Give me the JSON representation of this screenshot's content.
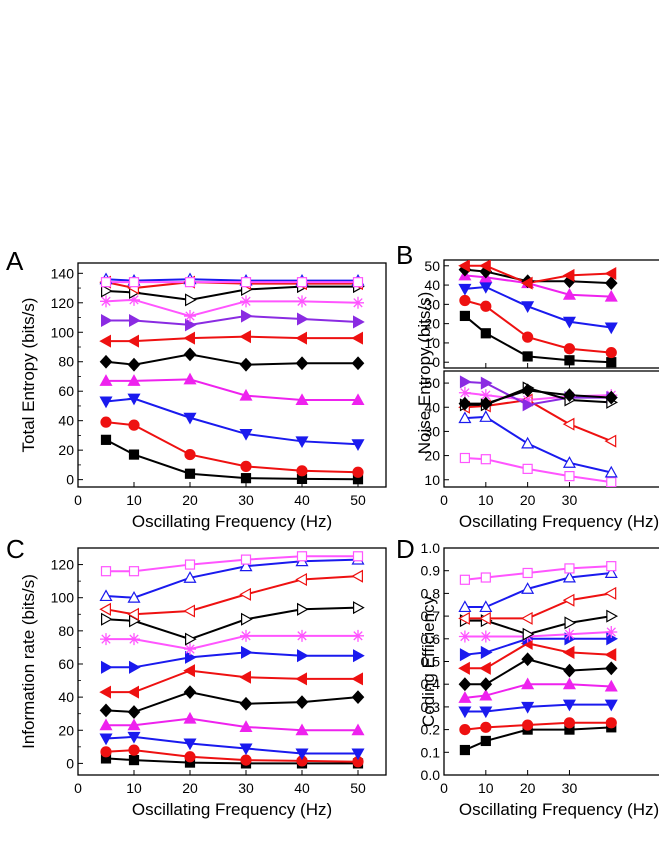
{
  "colors": {
    "black": "#000000",
    "red": "#ee1111",
    "blue": "#1a1aee",
    "magenta": "#ee22ee",
    "purple": "#8a2be2",
    "pink": "#ff55ff"
  },
  "chart_data": [
    {
      "type": "line",
      "panel": "A",
      "xlabel": "Oscillating Frequency (Hz)",
      "ylabel": "Total Entropy (bits/s)",
      "xlim": [
        0,
        55
      ],
      "ylim": [
        -5,
        147
      ],
      "xticks": [
        0,
        10,
        20,
        30,
        40,
        50
      ],
      "yticks": [
        0,
        20,
        40,
        60,
        80,
        100,
        120,
        140
      ],
      "x": [
        5,
        10,
        20,
        30,
        40,
        50
      ],
      "series": [
        {
          "marker": "square",
          "color": "black",
          "filled": true,
          "values": [
            27,
            17,
            4,
            1,
            0.5,
            0.3
          ]
        },
        {
          "marker": "circle",
          "color": "red",
          "filled": true,
          "values": [
            39,
            37,
            17,
            9,
            6,
            5
          ]
        },
        {
          "marker": "tri-down",
          "color": "blue",
          "filled": true,
          "values": [
            53,
            55,
            42,
            31,
            26,
            24
          ]
        },
        {
          "marker": "tri-up",
          "color": "magenta",
          "filled": true,
          "values": [
            67,
            67,
            68,
            57,
            54,
            54
          ]
        },
        {
          "marker": "diamond",
          "color": "black",
          "filled": true,
          "values": [
            80,
            78,
            85,
            78,
            79,
            79
          ]
        },
        {
          "marker": "tri-left",
          "color": "red",
          "filled": true,
          "values": [
            94,
            94,
            96,
            97,
            96,
            96
          ]
        },
        {
          "marker": "tri-right",
          "color": "purple",
          "filled": true,
          "values": [
            108,
            108,
            105,
            111,
            109,
            107
          ]
        },
        {
          "marker": "star",
          "color": "pink",
          "filled": false,
          "values": [
            121,
            122,
            111,
            121,
            121,
            120
          ]
        },
        {
          "marker": "tri-right",
          "color": "black",
          "filled": false,
          "values": [
            128,
            127,
            122,
            129,
            131,
            131
          ]
        },
        {
          "marker": "tri-left",
          "color": "red",
          "filled": false,
          "values": [
            134,
            130,
            134,
            133,
            133,
            133
          ]
        },
        {
          "marker": "tri-up",
          "color": "blue",
          "filled": false,
          "values": [
            136,
            135,
            136,
            135,
            135,
            135
          ]
        },
        {
          "marker": "square",
          "color": "pink",
          "filled": false,
          "values": [
            134,
            134,
            134,
            134,
            134,
            134
          ]
        }
      ]
    },
    {
      "type": "line",
      "panel": "B",
      "xlabel": "Oscillating Frequency (Hz)",
      "ylabel": "Noise Entropy (bits/s)",
      "xlim": [
        0,
        55
      ],
      "xticks": [
        0,
        10,
        20,
        30
      ],
      "upper": {
        "ylim": [
          -3,
          53
        ],
        "yticks": [
          0,
          10,
          20,
          30,
          40,
          50
        ],
        "x": [
          5,
          10,
          20,
          30,
          40
        ],
        "series": [
          {
            "marker": "square",
            "color": "black",
            "filled": true,
            "values": [
              24,
              15,
              3,
              1,
              0
            ]
          },
          {
            "marker": "circle",
            "color": "red",
            "filled": true,
            "values": [
              32,
              29,
              13,
              7,
              5
            ]
          },
          {
            "marker": "tri-down",
            "color": "blue",
            "filled": true,
            "values": [
              38,
              39,
              29,
              21,
              18
            ]
          },
          {
            "marker": "tri-up",
            "color": "magenta",
            "filled": true,
            "values": [
              45,
              44,
              41,
              35,
              34
            ]
          },
          {
            "marker": "diamond",
            "color": "black",
            "filled": true,
            "values": [
              48,
              47,
              42,
              42,
              41
            ]
          },
          {
            "marker": "tri-left",
            "color": "red",
            "filled": true,
            "values": [
              50,
              50,
              41,
              45,
              46
            ]
          }
        ]
      },
      "lower": {
        "ylim": [
          7,
          55
        ],
        "yticks": [
          10,
          20,
          30,
          40,
          50
        ],
        "x": [
          5,
          10,
          20,
          30,
          40
        ],
        "series": [
          {
            "marker": "square",
            "color": "pink",
            "filled": false,
            "values": [
              19,
              18.5,
              14.5,
              11.5,
              9
            ]
          },
          {
            "marker": "tri-up",
            "color": "blue",
            "filled": false,
            "values": [
              35.5,
              36,
              25,
              17,
              13
            ]
          },
          {
            "marker": "tri-left",
            "color": "red",
            "filled": false,
            "values": [
              40,
              40.5,
              43,
              33,
              26
            ]
          },
          {
            "marker": "star",
            "color": "pink",
            "filled": false,
            "values": [
              46,
              45,
              43,
              44.5,
              45
            ]
          },
          {
            "marker": "tri-right",
            "color": "purple",
            "filled": true,
            "values": [
              50.5,
              50,
              41,
              44,
              44
            ]
          },
          {
            "marker": "tri-right",
            "color": "black",
            "filled": false,
            "values": [
              41,
              41,
              48,
              43,
              42
            ]
          },
          {
            "marker": "diamond",
            "color": "black",
            "filled": true,
            "values": [
              41.5,
              41.5,
              47,
              45,
              44
            ]
          }
        ]
      }
    },
    {
      "type": "line",
      "panel": "C",
      "xlabel": "Oscillating Frequency (Hz)",
      "ylabel": "Information rate (bits/s)",
      "xlim": [
        0,
        55
      ],
      "ylim": [
        -7,
        130
      ],
      "xticks": [
        0,
        10,
        20,
        30,
        40,
        50
      ],
      "yticks": [
        0,
        20,
        40,
        60,
        80,
        100,
        120
      ],
      "x": [
        5,
        10,
        20,
        30,
        40,
        50
      ],
      "series": [
        {
          "marker": "square",
          "color": "black",
          "filled": true,
          "values": [
            3,
            2,
            0.5,
            0,
            0,
            0
          ]
        },
        {
          "marker": "circle",
          "color": "red",
          "filled": true,
          "values": [
            7,
            8,
            4,
            2,
            1.5,
            1
          ]
        },
        {
          "marker": "tri-down",
          "color": "blue",
          "filled": true,
          "values": [
            15,
            16,
            12,
            9,
            6,
            6
          ]
        },
        {
          "marker": "tri-up",
          "color": "magenta",
          "filled": true,
          "values": [
            23,
            23,
            27,
            22,
            20,
            20
          ]
        },
        {
          "marker": "diamond",
          "color": "black",
          "filled": true,
          "values": [
            32,
            31,
            43,
            36,
            37,
            40
          ]
        },
        {
          "marker": "tri-left",
          "color": "red",
          "filled": true,
          "values": [
            43,
            43,
            56,
            52,
            51,
            51
          ]
        },
        {
          "marker": "tri-right",
          "color": "blue",
          "filled": true,
          "values": [
            58,
            58,
            64,
            67,
            65,
            65
          ]
        },
        {
          "marker": "star",
          "color": "pink",
          "filled": false,
          "values": [
            75,
            75,
            69,
            77,
            77,
            77
          ]
        },
        {
          "marker": "tri-right",
          "color": "black",
          "filled": false,
          "values": [
            87,
            86,
            75,
            87,
            93,
            94
          ]
        },
        {
          "marker": "tri-left",
          "color": "red",
          "filled": false,
          "values": [
            93,
            90,
            92,
            102,
            111,
            113
          ]
        },
        {
          "marker": "tri-up",
          "color": "blue",
          "filled": false,
          "values": [
            101,
            100,
            112,
            119,
            122,
            123
          ]
        },
        {
          "marker": "square",
          "color": "pink",
          "filled": false,
          "values": [
            116,
            116,
            120,
            123,
            125,
            125
          ]
        }
      ]
    },
    {
      "type": "line",
      "panel": "D",
      "xlabel": "Oscillating Frequency (Hz)",
      "ylabel": "Coding Efficiency",
      "xlim": [
        0,
        55
      ],
      "ylim": [
        0,
        1.0
      ],
      "xticks": [
        0,
        10,
        20,
        30
      ],
      "yticks": [
        0.0,
        0.1,
        0.2,
        0.3,
        0.4,
        0.5,
        0.6,
        0.7,
        0.8,
        0.9,
        1.0
      ],
      "x": [
        5,
        10,
        20,
        30,
        40
      ],
      "series": [
        {
          "marker": "square",
          "color": "black",
          "filled": true,
          "values": [
            0.11,
            0.15,
            0.2,
            0.2,
            0.21
          ]
        },
        {
          "marker": "circle",
          "color": "red",
          "filled": true,
          "values": [
            0.2,
            0.21,
            0.22,
            0.23,
            0.23
          ]
        },
        {
          "marker": "tri-down",
          "color": "blue",
          "filled": true,
          "values": [
            0.28,
            0.28,
            0.3,
            0.31,
            0.31
          ]
        },
        {
          "marker": "tri-up",
          "color": "magenta",
          "filled": true,
          "values": [
            0.34,
            0.35,
            0.4,
            0.4,
            0.39
          ]
        },
        {
          "marker": "diamond",
          "color": "black",
          "filled": true,
          "values": [
            0.4,
            0.4,
            0.51,
            0.46,
            0.47
          ]
        },
        {
          "marker": "tri-left",
          "color": "red",
          "filled": true,
          "values": [
            0.47,
            0.47,
            0.58,
            0.54,
            0.53
          ]
        },
        {
          "marker": "tri-right",
          "color": "blue",
          "filled": true,
          "values": [
            0.53,
            0.54,
            0.6,
            0.6,
            0.6
          ]
        },
        {
          "marker": "star",
          "color": "pink",
          "filled": false,
          "values": [
            0.61,
            0.61,
            0.61,
            0.62,
            0.63
          ]
        },
        {
          "marker": "tri-right",
          "color": "black",
          "filled": false,
          "values": [
            0.68,
            0.68,
            0.62,
            0.67,
            0.7
          ]
        },
        {
          "marker": "tri-left",
          "color": "red",
          "filled": false,
          "values": [
            0.69,
            0.69,
            0.69,
            0.77,
            0.8
          ]
        },
        {
          "marker": "tri-up",
          "color": "blue",
          "filled": false,
          "values": [
            0.74,
            0.74,
            0.82,
            0.87,
            0.89
          ]
        },
        {
          "marker": "square",
          "color": "pink",
          "filled": false,
          "values": [
            0.86,
            0.87,
            0.89,
            0.91,
            0.92
          ]
        }
      ]
    }
  ]
}
